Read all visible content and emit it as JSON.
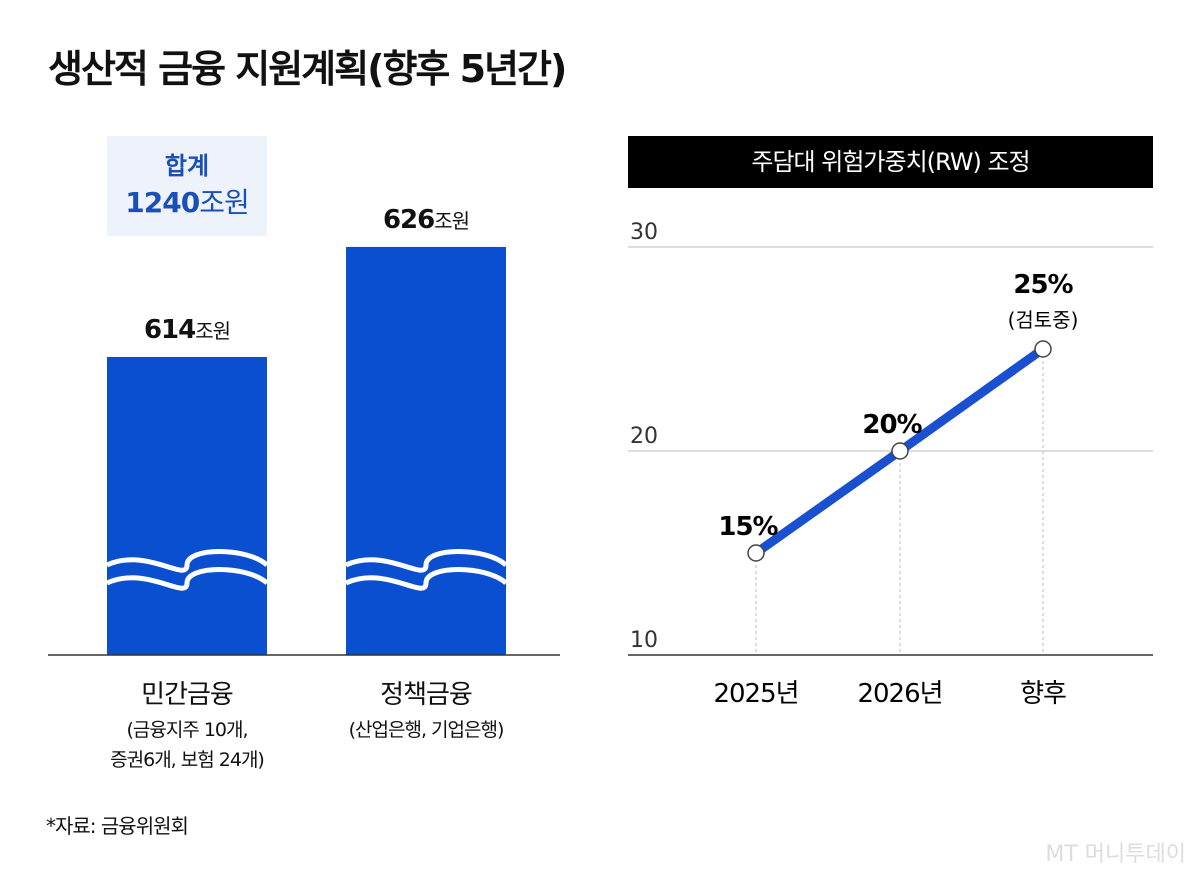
{
  "title": "생산적 금융 지원계획(향후 5년간)",
  "total": {
    "label": "합계",
    "value": "1240",
    "unit": "조원"
  },
  "source": "*자료: 금융위원회",
  "logo": "MT 머니투데이",
  "colors": {
    "bar": "#0a4fd0",
    "line": "#1a4fd0",
    "header_bg": "#000000",
    "total_bg": "#eef3fb",
    "total_text": "#1a4fb8"
  },
  "chart_data": [
    {
      "type": "bar",
      "axis_break": true,
      "categories": [
        "민간금융",
        "정책금융"
      ],
      "category_notes": [
        [
          "(금융지주 10개,",
          "증권6개, 보험 24개)"
        ],
        [
          "(산업은행, 기업은행)"
        ]
      ],
      "values": [
        614,
        626
      ],
      "value_labels": [
        "614",
        "626"
      ],
      "unit": "조원"
    },
    {
      "type": "line",
      "title": "주담대 위험가중치(RW) 조정",
      "categories": [
        "2025년",
        "2026년",
        "향후"
      ],
      "values": [
        15,
        20,
        25
      ],
      "value_labels": [
        "15%",
        "20%",
        "25%"
      ],
      "annotations": [
        "",
        "",
        "(검토중)"
      ],
      "ylim": [
        10,
        30
      ],
      "yticks": [
        "10",
        "20",
        "30"
      ],
      "grid": true
    }
  ]
}
